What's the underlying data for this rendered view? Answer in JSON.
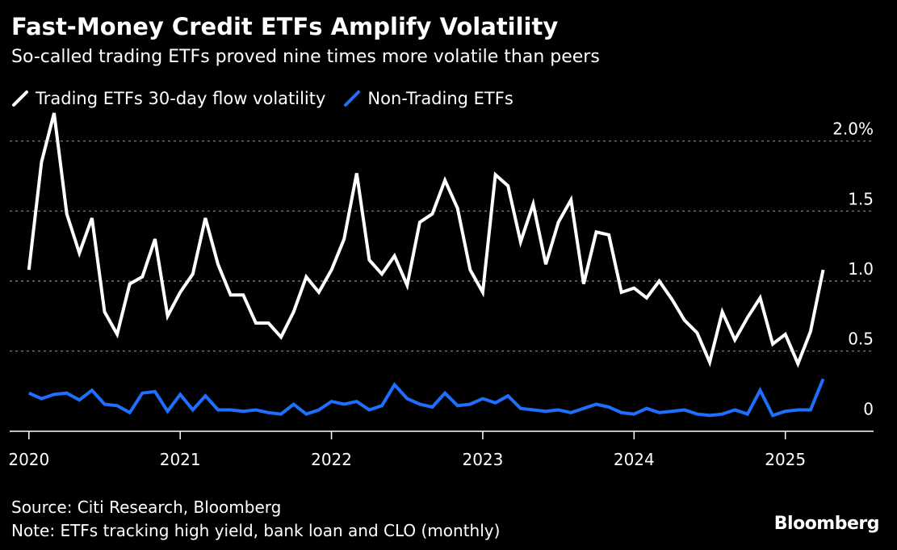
{
  "header": {
    "title": "Fast-Money Credit ETFs Amplify Volatility",
    "subtitle": "So-called trading ETFs proved nine times more volatile than peers"
  },
  "legend": [
    {
      "label": "Trading ETFs 30-day flow volatility",
      "color": "#ffffff"
    },
    {
      "label": "Non-Trading ETFs",
      "color": "#1f6fff"
    }
  ],
  "footer": {
    "source": "Source: Citi Research, Bloomberg",
    "note": "Note: ETFs tracking high yield, bank loan and CLO (monthly)",
    "brand": "Bloomberg"
  },
  "chart_data": {
    "type": "line",
    "x_start": "2020-01",
    "frequency": "monthly",
    "xticks": [
      {
        "year": "2020",
        "month_index": 0
      },
      {
        "year": "2021",
        "month_index": 12
      },
      {
        "year": "2022",
        "month_index": 24
      },
      {
        "year": "2023",
        "month_index": 36
      },
      {
        "year": "2024",
        "month_index": 48
      },
      {
        "year": "2025",
        "month_index": 60
      }
    ],
    "yticks": [
      {
        "value": 0,
        "label": "0"
      },
      {
        "value": 0.5,
        "label": "0.5"
      },
      {
        "value": 1.0,
        "label": "1.0"
      },
      {
        "value": 1.5,
        "label": "1.5"
      },
      {
        "value": 2.0,
        "label": "2.0%"
      }
    ],
    "ylim": [
      -0.05,
      2.2
    ],
    "xlim": [
      -0.5,
      67
    ],
    "grid": true,
    "legend_position": "top-left",
    "series": [
      {
        "name": "Trading ETFs 30-day flow volatility",
        "color": "#ffffff",
        "values": [
          1.08,
          1.85,
          2.2,
          1.48,
          1.2,
          1.45,
          0.78,
          0.62,
          0.98,
          1.03,
          1.3,
          0.75,
          0.92,
          1.05,
          1.45,
          1.12,
          0.9,
          0.9,
          0.7,
          0.7,
          0.6,
          0.78,
          1.03,
          0.92,
          1.08,
          1.3,
          1.77,
          1.15,
          1.05,
          1.18,
          0.97,
          1.42,
          1.48,
          1.72,
          1.52,
          1.08,
          0.92,
          1.76,
          1.68,
          1.28,
          1.55,
          1.12,
          1.42,
          1.58,
          0.98,
          1.35,
          1.33,
          0.92,
          0.95,
          0.88,
          1.0,
          0.87,
          0.72,
          0.63,
          0.42,
          0.78,
          0.58,
          0.74,
          0.88,
          0.55,
          0.62,
          0.41,
          0.64,
          1.08
        ]
      },
      {
        "name": "Non-Trading ETFs",
        "color": "#1f6fff",
        "values": [
          0.2,
          0.16,
          0.19,
          0.2,
          0.15,
          0.22,
          0.12,
          0.11,
          0.06,
          0.2,
          0.21,
          0.07,
          0.19,
          0.08,
          0.18,
          0.08,
          0.08,
          0.07,
          0.08,
          0.06,
          0.05,
          0.12,
          0.05,
          0.08,
          0.14,
          0.12,
          0.14,
          0.08,
          0.11,
          0.26,
          0.16,
          0.12,
          0.1,
          0.2,
          0.11,
          0.12,
          0.16,
          0.13,
          0.18,
          0.09,
          0.08,
          0.07,
          0.08,
          0.06,
          0.09,
          0.12,
          0.1,
          0.06,
          0.05,
          0.09,
          0.06,
          0.07,
          0.08,
          0.05,
          0.04,
          0.05,
          0.08,
          0.05,
          0.22,
          0.04,
          0.07,
          0.08,
          0.08,
          0.3
        ]
      }
    ]
  }
}
